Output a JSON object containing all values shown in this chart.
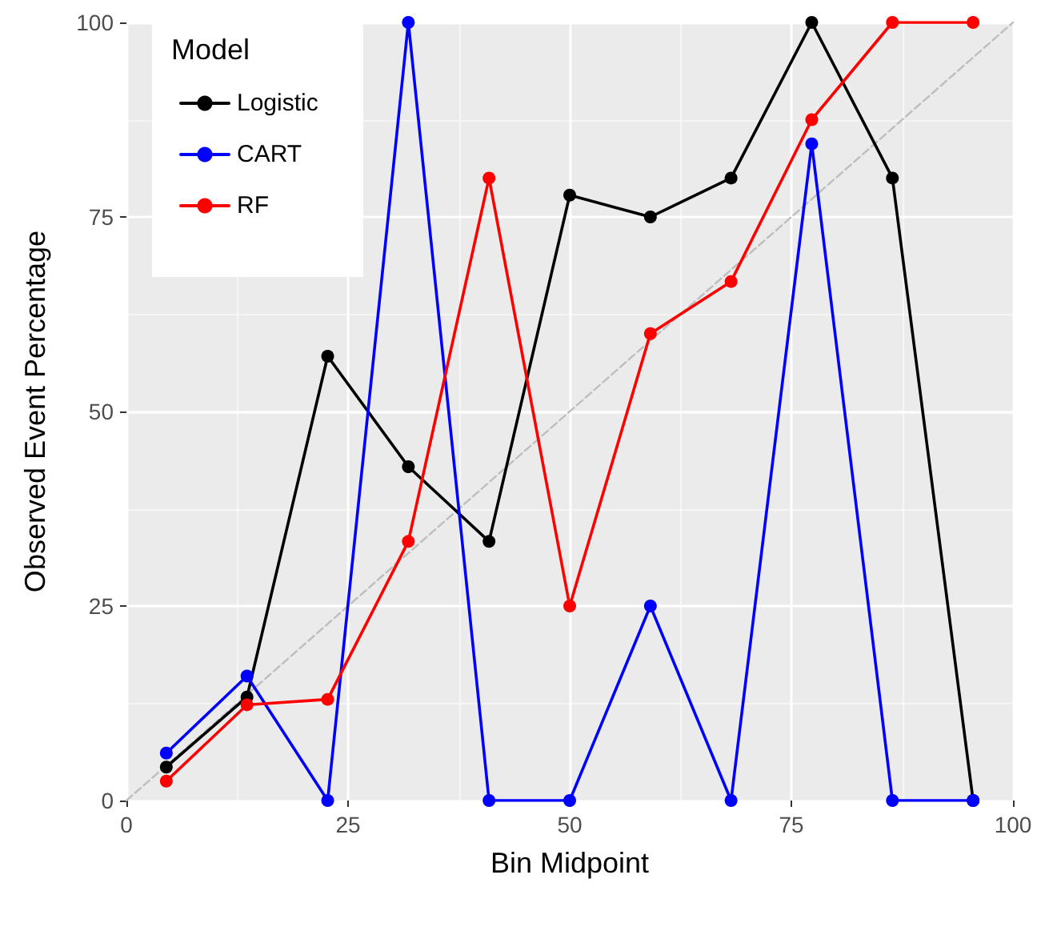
{
  "chart_data": {
    "type": "line",
    "xlabel": "Bin Midpoint",
    "ylabel": "Observed Event Percentage",
    "legend_title": "Model",
    "legend": "top left",
    "grid": true,
    "marker": "circle",
    "line_style": "solid",
    "xlim": [
      0,
      100
    ],
    "xticks": [
      0,
      25,
      50,
      75,
      100
    ],
    "ylim": [
      0,
      100
    ],
    "yticks": [
      0,
      25,
      50,
      75,
      100
    ],
    "series": [
      {
        "name": "Logistic",
        "color": "#000000",
        "x": [
          4.5,
          13.6,
          22.7,
          31.8,
          40.9,
          50,
          59.1,
          68.2,
          77.3,
          86.4,
          95.5
        ],
        "values": [
          4.3,
          13.3,
          57.1,
          42.9,
          33.3,
          77.8,
          75,
          80,
          100,
          80,
          0
        ]
      },
      {
        "name": "CART",
        "color": "#0000ff",
        "x": [
          4.5,
          13.6,
          22.7,
          31.8,
          40.9,
          50,
          59.1,
          68.2,
          77.3,
          86.4,
          95.5
        ],
        "values": [
          6.1,
          16,
          0,
          100,
          0,
          0,
          25,
          0,
          84.4,
          0,
          0
        ]
      },
      {
        "name": "RF",
        "color": "#ff0000",
        "x": [
          4.5,
          13.6,
          22.7,
          31.8,
          40.9,
          50,
          59.1,
          68.2,
          77.3,
          86.4,
          95.5
        ],
        "values": [
          2.5,
          12.3,
          13,
          33.3,
          80,
          25,
          60,
          66.7,
          87.5,
          100,
          100
        ]
      },
      {
        "color": "#bebebe",
        "x": [
          0,
          100
        ],
        "values": [
          0,
          100
        ],
        "marker": "none",
        "line_style": "dashed"
      }
    ]
  }
}
